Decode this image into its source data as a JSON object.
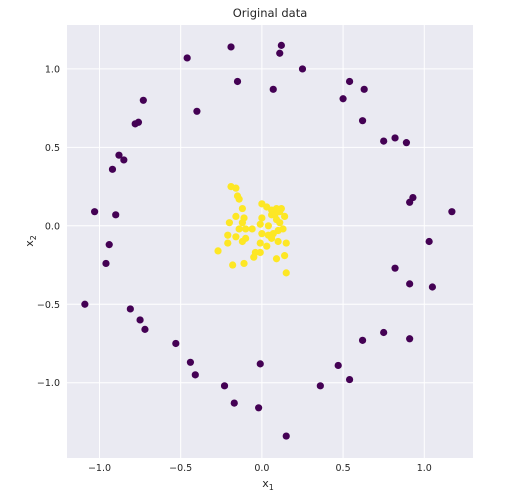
{
  "chart_data": {
    "type": "scatter",
    "title": "Original data",
    "xlabel": "x",
    "xlabel_sub": "1",
    "ylabel": "x",
    "ylabel_sub": "2",
    "xlim": [
      -1.2,
      1.3
    ],
    "ylim": [
      -1.48,
      1.28
    ],
    "xticks": [
      -1.0,
      -0.5,
      0.0,
      0.5,
      1.0
    ],
    "yticks": [
      -1.0,
      -0.5,
      0.0,
      0.5,
      1.0
    ],
    "xtick_labels": [
      "−1.0",
      "−0.5",
      "0.0",
      "0.5",
      "1.0"
    ],
    "ytick_labels": [
      "−1.0",
      "−0.5",
      "0.0",
      "0.5",
      "1.0"
    ],
    "grid": true,
    "background_color": "#eaeaf2",
    "grid_color": "#ffffff",
    "series": [
      {
        "color": "#440154",
        "points": [
          [
            -0.19,
            1.14
          ],
          [
            0.12,
            1.15
          ],
          [
            0.11,
            1.1
          ],
          [
            -0.46,
            1.07
          ],
          [
            0.25,
            1.0
          ],
          [
            -0.15,
            0.92
          ],
          [
            0.54,
            0.92
          ],
          [
            0.07,
            0.87
          ],
          [
            0.63,
            0.87
          ],
          [
            0.5,
            0.81
          ],
          [
            -0.73,
            0.8
          ],
          [
            -0.4,
            0.73
          ],
          [
            -0.76,
            0.66
          ],
          [
            -0.78,
            0.65
          ],
          [
            0.62,
            0.67
          ],
          [
            0.82,
            0.56
          ],
          [
            0.75,
            0.54
          ],
          [
            0.89,
            0.53
          ],
          [
            -0.88,
            0.45
          ],
          [
            -0.85,
            0.42
          ],
          [
            -0.92,
            0.36
          ],
          [
            0.93,
            0.18
          ],
          [
            0.91,
            0.15
          ],
          [
            -1.03,
            0.09
          ],
          [
            -0.9,
            0.07
          ],
          [
            1.17,
            0.09
          ],
          [
            1.03,
            -0.1
          ],
          [
            -0.94,
            -0.12
          ],
          [
            -0.96,
            -0.24
          ],
          [
            0.82,
            -0.27
          ],
          [
            0.91,
            -0.37
          ],
          [
            1.05,
            -0.39
          ],
          [
            -1.09,
            -0.5
          ],
          [
            -0.81,
            -0.53
          ],
          [
            -0.75,
            -0.6
          ],
          [
            -0.72,
            -0.66
          ],
          [
            0.75,
            -0.68
          ],
          [
            0.91,
            -0.72
          ],
          [
            0.62,
            -0.73
          ],
          [
            -0.53,
            -0.75
          ],
          [
            -0.44,
            -0.87
          ],
          [
            -0.01,
            -0.88
          ],
          [
            0.47,
            -0.89
          ],
          [
            -0.41,
            -0.95
          ],
          [
            0.54,
            -0.98
          ],
          [
            -0.23,
            -1.02
          ],
          [
            0.36,
            -1.02
          ],
          [
            -0.17,
            -1.13
          ],
          [
            -0.02,
            -1.16
          ],
          [
            0.15,
            -1.34
          ]
        ]
      },
      {
        "color": "#fde725",
        "points": [
          [
            -0.19,
            0.25
          ],
          [
            -0.16,
            0.24
          ],
          [
            -0.14,
            0.17
          ],
          [
            -0.15,
            0.19
          ],
          [
            0.0,
            0.14
          ],
          [
            0.03,
            0.12
          ],
          [
            0.06,
            0.1
          ],
          [
            0.09,
            0.11
          ],
          [
            0.12,
            0.11
          ],
          [
            0.11,
            0.09
          ],
          [
            0.08,
            0.07
          ],
          [
            0.06,
            0.07
          ],
          [
            0.14,
            0.06
          ],
          [
            0.09,
            0.04
          ],
          [
            0.0,
            0.05
          ],
          [
            -0.12,
            0.11
          ],
          [
            -0.16,
            0.06
          ],
          [
            -0.11,
            0.05
          ],
          [
            -0.12,
            0.02
          ],
          [
            -0.2,
            0.02
          ],
          [
            -0.14,
            -0.02
          ],
          [
            -0.1,
            -0.02
          ],
          [
            -0.06,
            -0.02
          ],
          [
            -0.01,
            0.01
          ],
          [
            0.04,
            0.0
          ],
          [
            0.11,
            0.02
          ],
          [
            0.13,
            -0.02
          ],
          [
            0.1,
            -0.03
          ],
          [
            -0.21,
            -0.06
          ],
          [
            -0.16,
            -0.07
          ],
          [
            -0.1,
            -0.08
          ],
          [
            0.0,
            -0.05
          ],
          [
            0.04,
            -0.06
          ],
          [
            0.07,
            -0.05
          ],
          [
            0.06,
            -0.08
          ],
          [
            0.1,
            -0.1
          ],
          [
            0.15,
            -0.11
          ],
          [
            -0.21,
            -0.11
          ],
          [
            -0.12,
            -0.1
          ],
          [
            -0.01,
            -0.11
          ],
          [
            0.03,
            -0.13
          ],
          [
            -0.27,
            -0.16
          ],
          [
            -0.01,
            -0.17
          ],
          [
            -0.04,
            -0.17
          ],
          [
            -0.05,
            -0.2
          ],
          [
            0.14,
            -0.19
          ],
          [
            0.09,
            -0.21
          ],
          [
            -0.11,
            -0.24
          ],
          [
            -0.18,
            -0.25
          ],
          [
            0.15,
            -0.3
          ]
        ]
      }
    ]
  }
}
